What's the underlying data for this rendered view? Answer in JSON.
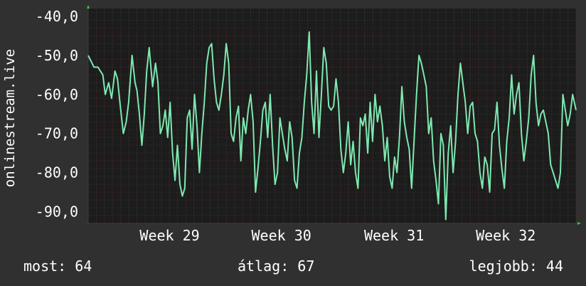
{
  "chart_data": {
    "type": "line",
    "ylabel": "onlinestream.live",
    "xlabel": "",
    "title": "",
    "ylim": [
      -93,
      -38
    ],
    "y_ticks": [
      -40,
      -50,
      -60,
      -70,
      -80,
      -90
    ],
    "y_tick_labels": [
      "-40,0",
      "-50,0",
      "-60,0",
      "-70,0",
      "-80,0",
      "-90,0"
    ],
    "x_tick_labels": [
      "Week 29",
      "Week 30",
      "Week 31",
      "Week 32"
    ],
    "x_tick_positions": [
      0.167,
      0.396,
      0.627,
      0.856
    ],
    "x_range": [
      0,
      1
    ],
    "grid": true,
    "series": [
      {
        "color": "#7ee8b0",
        "x": [
          0.0,
          0.012,
          0.02,
          0.03,
          0.035,
          0.042,
          0.048,
          0.055,
          0.06,
          0.065,
          0.072,
          0.078,
          0.083,
          0.09,
          0.096,
          0.1,
          0.105,
          0.11,
          0.115,
          0.12,
          0.125,
          0.132,
          0.138,
          0.143,
          0.148,
          0.153,
          0.158,
          0.163,
          0.168,
          0.173,
          0.178,
          0.183,
          0.188,
          0.193,
          0.198,
          0.203,
          0.208,
          0.213,
          0.218,
          0.223,
          0.228,
          0.233,
          0.238,
          0.243,
          0.248,
          0.253,
          0.258,
          0.263,
          0.268,
          0.273,
          0.278,
          0.283,
          0.288,
          0.293,
          0.298,
          0.303,
          0.308,
          0.313,
          0.318,
          0.323,
          0.328,
          0.333,
          0.338,
          0.343,
          0.348,
          0.353,
          0.358,
          0.363,
          0.368,
          0.373,
          0.378,
          0.383,
          0.388,
          0.393,
          0.398,
          0.403,
          0.408,
          0.413,
          0.418,
          0.423,
          0.428,
          0.433,
          0.438,
          0.443,
          0.448,
          0.453,
          0.458,
          0.463,
          0.468,
          0.473,
          0.478,
          0.483,
          0.488,
          0.493,
          0.498,
          0.503,
          0.508,
          0.513,
          0.518,
          0.523,
          0.528,
          0.533,
          0.538,
          0.543,
          0.548,
          0.553,
          0.558,
          0.563,
          0.568,
          0.573,
          0.578,
          0.583,
          0.588,
          0.593,
          0.598,
          0.603,
          0.608,
          0.613,
          0.618,
          0.623,
          0.628,
          0.633,
          0.638,
          0.643,
          0.648,
          0.653,
          0.658,
          0.663,
          0.668,
          0.673,
          0.678,
          0.683,
          0.688,
          0.693,
          0.698,
          0.703,
          0.708,
          0.713,
          0.718,
          0.723,
          0.728,
          0.733,
          0.738,
          0.743,
          0.748,
          0.753,
          0.758,
          0.763,
          0.768,
          0.773,
          0.778,
          0.783,
          0.788,
          0.793,
          0.798,
          0.803,
          0.808,
          0.813,
          0.818,
          0.823,
          0.828,
          0.833,
          0.838,
          0.843,
          0.848,
          0.853,
          0.858,
          0.863,
          0.868,
          0.873,
          0.878,
          0.883,
          0.888,
          0.893,
          0.898,
          0.903,
          0.908,
          0.913,
          0.918,
          0.923,
          0.928,
          0.933,
          0.938,
          0.943,
          0.948,
          0.953,
          0.958,
          0.963,
          0.968,
          0.973,
          0.978,
          0.983,
          0.988,
          0.993,
          1.0
        ],
        "values": [
          -50,
          -53,
          -53,
          -55,
          -60,
          -57,
          -61,
          -54,
          -56,
          -62,
          -70,
          -67,
          -62,
          -50,
          -57,
          -59,
          -65,
          -73,
          -65,
          -54,
          -48,
          -58,
          -52,
          -57,
          -70,
          -68,
          -64,
          -71,
          -62,
          -75,
          -82,
          -73,
          -83,
          -86,
          -84,
          -66,
          -64,
          -74,
          -60,
          -68,
          -80,
          -70,
          -62,
          -52,
          -48,
          -47,
          -56,
          -62,
          -64,
          -60,
          -55,
          -47,
          -52,
          -70,
          -72,
          -66,
          -63,
          -77,
          -66,
          -70,
          -64,
          -60,
          -67,
          -85,
          -79,
          -72,
          -64,
          -62,
          -71,
          -60,
          -73,
          -83,
          -80,
          -66,
          -70,
          -74,
          -77,
          -67,
          -71,
          -82,
          -84,
          -75,
          -71,
          -62,
          -55,
          -44,
          -62,
          -70,
          -54,
          -71,
          -60,
          -48,
          -52,
          -63,
          -64,
          -63,
          -56,
          -62,
          -74,
          -80,
          -75,
          -67,
          -78,
          -72,
          -80,
          -84,
          -66,
          -68,
          -65,
          -75,
          -62,
          -72,
          -60,
          -67,
          -63,
          -68,
          -77,
          -71,
          -81,
          -84,
          -76,
          -80,
          -71,
          -58,
          -67,
          -71,
          -74,
          -84,
          -72,
          -60,
          -50,
          -52,
          -55,
          -58,
          -70,
          -66,
          -77,
          -82,
          -88,
          -70,
          -73,
          -92,
          -75,
          -68,
          -80,
          -72,
          -60,
          -52,
          -57,
          -62,
          -70,
          -63,
          -62,
          -70,
          -72,
          -80,
          -84,
          -76,
          -78,
          -85,
          -70,
          -69,
          -62,
          -73,
          -79,
          -84,
          -72,
          -66,
          -55,
          -65,
          -60,
          -57,
          -70,
          -77,
          -72,
          -66,
          -55,
          -50,
          -62,
          -68,
          -65,
          -64,
          -67,
          -70,
          -78,
          -80,
          -82,
          -84,
          -80,
          -60,
          -64,
          -68,
          -65,
          -60,
          -64
        ]
      }
    ],
    "stats": {
      "current": "most: 64",
      "average": "átlag: 67",
      "best": "legjobb: 44"
    }
  }
}
